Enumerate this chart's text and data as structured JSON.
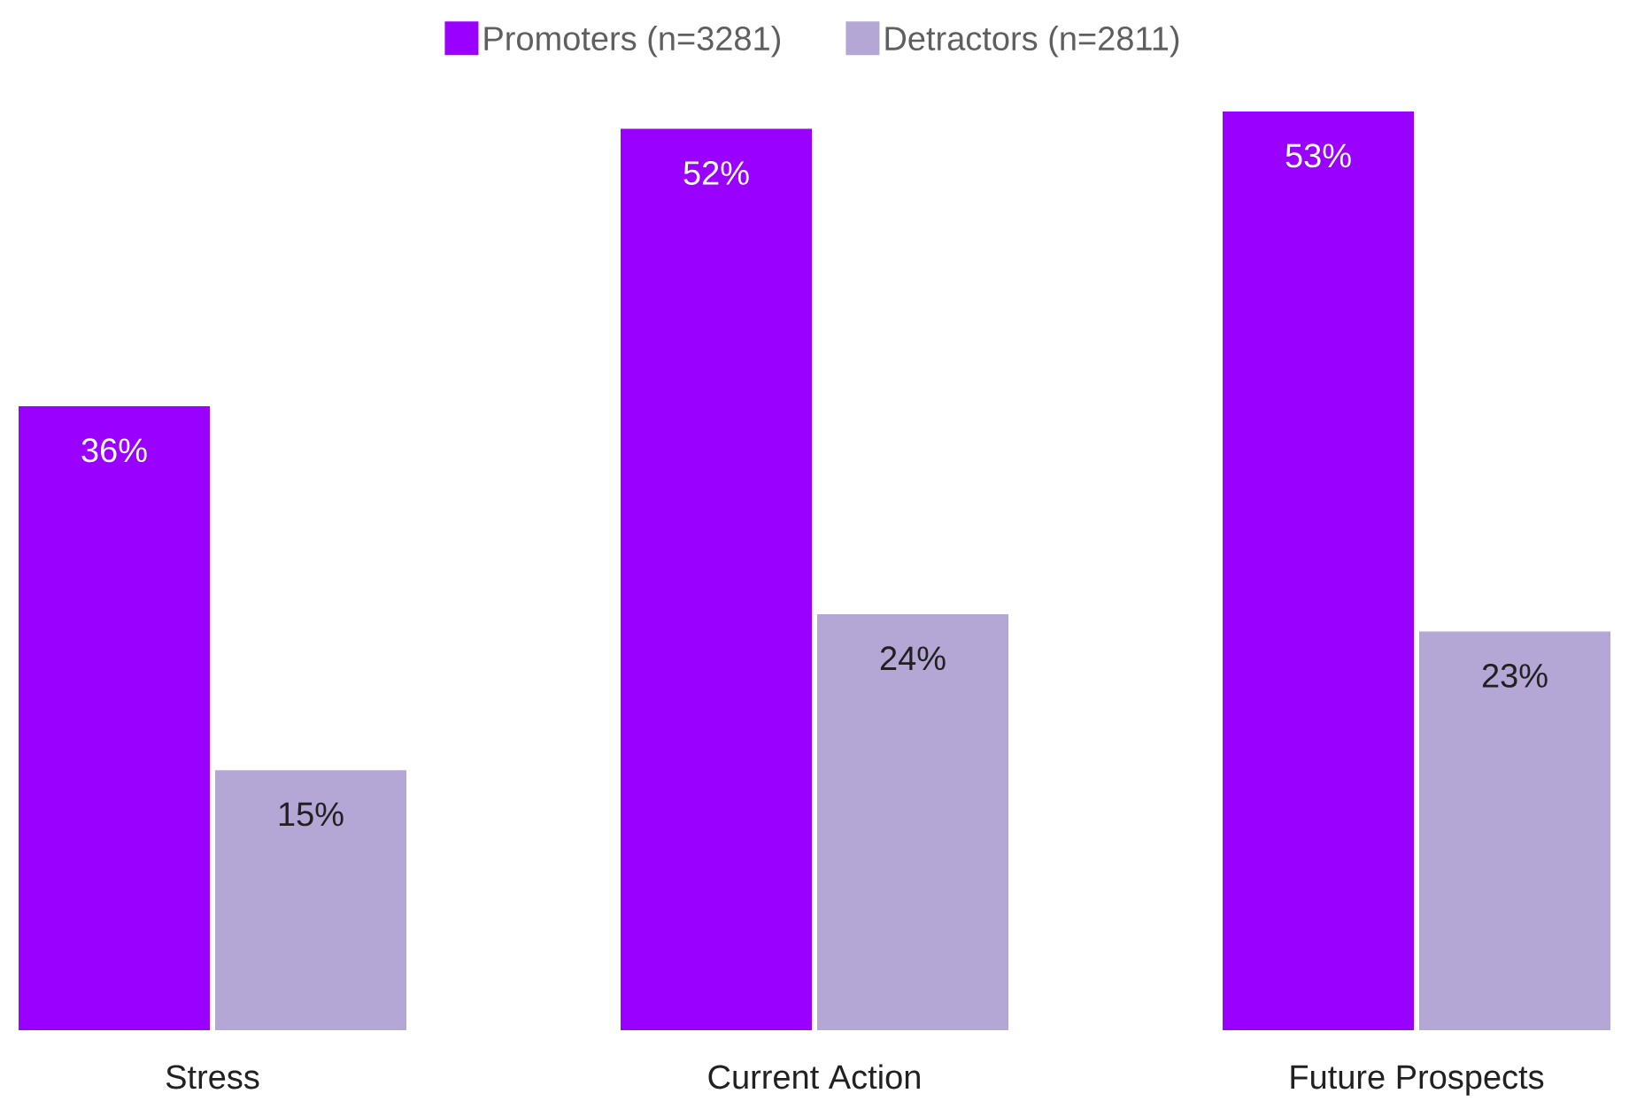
{
  "chart_data": {
    "type": "bar",
    "categories": [
      "Stress",
      "Current Action",
      "Future Prospects"
    ],
    "series": [
      {
        "name": "Promoters (n=3281)",
        "color": "#9900ff",
        "values": [
          36,
          52,
          53
        ],
        "value_labels": [
          "36%",
          "52%",
          "53%"
        ]
      },
      {
        "name": "Detractors (n=2811)",
        "color": "#b4a7d6",
        "values": [
          15,
          24,
          23
        ],
        "value_labels": [
          "15%",
          "24%",
          "23%"
        ]
      }
    ],
    "ylim": [
      0,
      53
    ],
    "legend": "top",
    "tick_labels": "x"
  }
}
